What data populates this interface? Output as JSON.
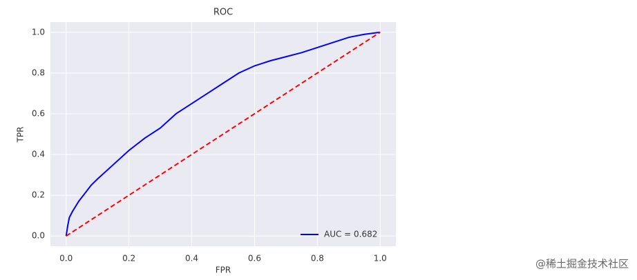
{
  "chart_data": {
    "type": "line",
    "title": "ROC",
    "x_label": "FPR",
    "y_label": "TPR",
    "xlim": [
      -0.05,
      1.05
    ],
    "ylim": [
      -0.05,
      1.05
    ],
    "xticks": [
      {
        "value": 0,
        "label": "0.0"
      },
      0.2,
      0.4,
      0.6,
      0.8,
      {
        "value": 1,
        "label": "1.0"
      }
    ],
    "yticks": [
      {
        "value": 0,
        "label": "0.0"
      },
      0.2,
      0.4,
      0.6,
      0.8,
      {
        "value": 1,
        "label": "1.0"
      }
    ],
    "grid": true,
    "legend": "lower right",
    "series": [
      {
        "name": "AUC = 0.682",
        "color": "#0000ff",
        "dash": false,
        "x": [
          0,
          0.005,
          0.01,
          0.02,
          0.04,
          0.06,
          0.08,
          0.1,
          0.15,
          0.2,
          0.25,
          0.3,
          0.35,
          0.4,
          0.45,
          0.5,
          0.55,
          0.6,
          0.65,
          0.7,
          0.75,
          0.8,
          0.85,
          0.9,
          0.95,
          1
        ],
        "values": [
          0,
          0.05,
          0.09,
          0.12,
          0.17,
          0.21,
          0.25,
          0.28,
          0.35,
          0.42,
          0.48,
          0.53,
          0.6,
          0.65,
          0.7,
          0.75,
          0.8,
          0.835,
          0.86,
          0.88,
          0.9,
          0.925,
          0.95,
          0.975,
          0.99,
          1
        ]
      },
      {
        "color": "#ff0000",
        "dash": true,
        "x": [
          0,
          1
        ],
        "values": [
          0,
          1
        ]
      }
    ]
  },
  "watermark": "@稀土掘金技术社区"
}
